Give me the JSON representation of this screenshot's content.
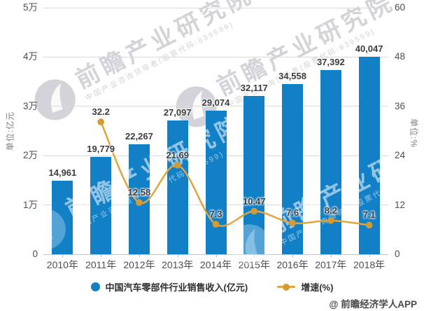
{
  "watermark": {
    "brand": "前瞻产业研究院",
    "tagline": "中国产业咨询领导者(股票代码:839599)"
  },
  "attribution": "@ 前瞻经济学人APP",
  "legend": [
    {
      "label": "中国汽车零部件行业销售收入(亿元)",
      "marker": "circle",
      "color": "#1280c6"
    },
    {
      "label": "增速(%)",
      "marker": "line-dot",
      "color": "#e2a43c"
    }
  ],
  "colors": {
    "bar": "#1280c6",
    "line": "#e2a43c",
    "marker": "#d59a33",
    "gridline": "#dadada"
  },
  "chart_data": {
    "type": "bar",
    "categories": [
      "2010年",
      "2011年",
      "2012年",
      "2013年",
      "2014年",
      "2015年",
      "2016年",
      "2017年",
      "2018年"
    ],
    "series": [
      {
        "name": "中国汽车零部件行业销售收入(亿元)",
        "type": "bar",
        "axis": "left",
        "color": "#1280c6",
        "values": [
          14961,
          19779,
          22267,
          27097,
          29074,
          32117,
          34558,
          37392,
          40047
        ],
        "labels": [
          "14,961",
          "19,779",
          "22,267",
          "27,097",
          "29,074",
          "32,117",
          "34,558",
          "37,392",
          "40,047"
        ]
      },
      {
        "name": "增速(%)",
        "type": "line",
        "axis": "right",
        "color": "#e2a43c",
        "marker_color": "#d59a33",
        "values": [
          null,
          32.2,
          12.58,
          21.69,
          7.3,
          10.47,
          7.6,
          8.2,
          7.1
        ],
        "labels": [
          null,
          "32.2",
          "12.58",
          "21.69",
          "7.3",
          "10.47",
          "7.6",
          "8.2",
          "7.1"
        ]
      }
    ],
    "left_axis": {
      "title": "单位:亿元",
      "range": [
        0,
        50000
      ],
      "ticks": [
        {
          "label": "5万",
          "value": 50000
        },
        {
          "label": "4万",
          "value": 40000
        },
        {
          "label": "3万",
          "value": 30000
        },
        {
          "label": "2万",
          "value": 20000
        },
        {
          "label": "1万",
          "value": 10000
        },
        {
          "label": "0",
          "value": 0
        }
      ]
    },
    "right_axis": {
      "title": "单位:%",
      "range": [
        0,
        60
      ],
      "ticks": [
        {
          "label": "60",
          "value": 60
        },
        {
          "label": "48",
          "value": 48
        },
        {
          "label": "36",
          "value": 36
        },
        {
          "label": "24",
          "value": 24
        },
        {
          "label": "12",
          "value": 12
        },
        {
          "label": "0",
          "value": 0
        }
      ]
    },
    "grid": true,
    "legend_position": "bottom"
  }
}
